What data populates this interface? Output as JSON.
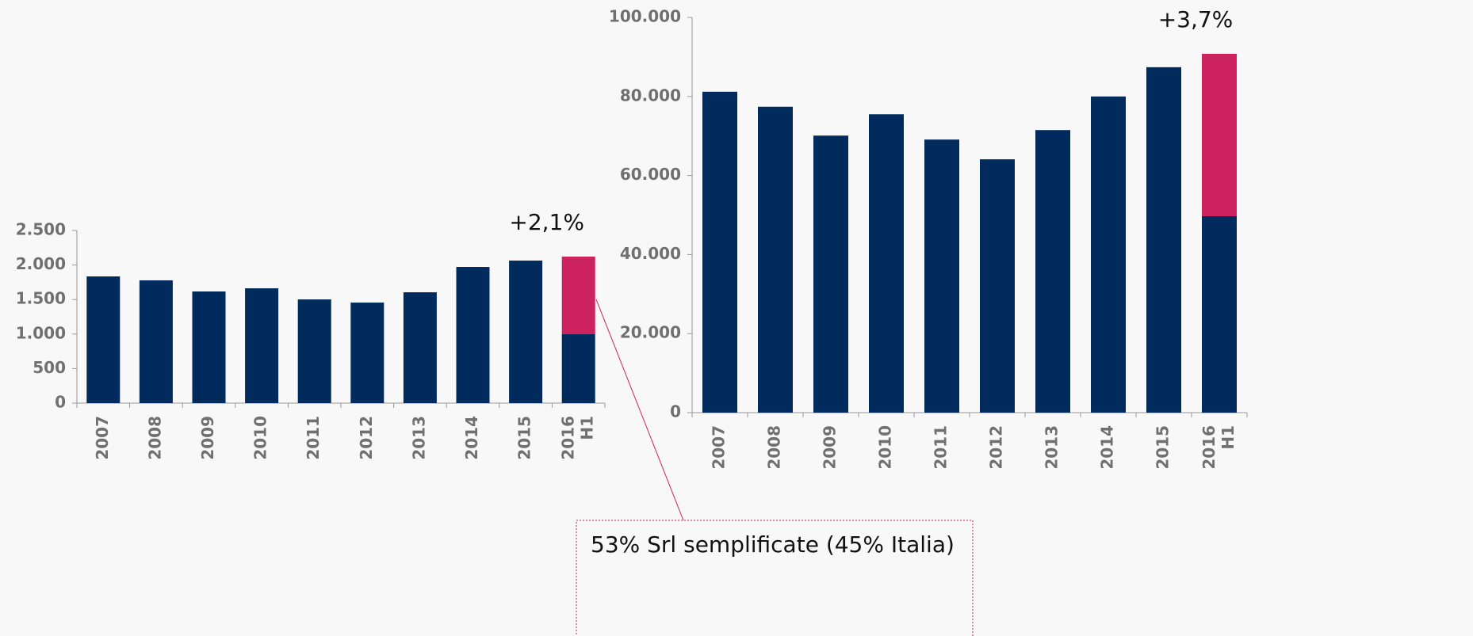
{
  "chart_data": [
    {
      "type": "bar",
      "stacked": true,
      "categories": [
        "2007",
        "2008",
        "2009",
        "2010",
        "2011",
        "2012",
        "2013",
        "2014",
        "2015",
        "2016 H1"
      ],
      "series": [
        {
          "color": "#002b5c",
          "values": [
            1835,
            1778,
            1617,
            1663,
            1502,
            1456,
            1605,
            1972,
            2064,
            998
          ]
        },
        {
          "color": "#cc2260",
          "values": [
            null,
            null,
            null,
            null,
            null,
            null,
            null,
            null,
            null,
            1124
          ]
        }
      ],
      "ylim": [
        0,
        2500
      ],
      "yticks": [
        0,
        500,
        {
          "value": 1000,
          "label": "1.000"
        },
        {
          "value": 1500,
          "label": "1.500"
        },
        {
          "value": 2000,
          "label": "2.000"
        },
        {
          "value": 2500,
          "label": "2.500"
        }
      ],
      "annotation": "+2,1%"
    },
    {
      "type": "bar",
      "stacked": true,
      "categories": [
        "2007",
        "2008",
        "2009",
        "2010",
        "2011",
        "2012",
        "2013",
        "2014",
        "2015",
        "2016 H1"
      ],
      "series": [
        {
          "color": "#002b5c",
          "values": [
            81200,
            77400,
            70100,
            75500,
            69100,
            64100,
            71500,
            80000,
            87400,
            49700
          ]
        },
        {
          "color": "#cc2260",
          "values": [
            null,
            null,
            null,
            null,
            null,
            null,
            null,
            null,
            null,
            41100
          ]
        }
      ],
      "ylim": [
        0,
        100000
      ],
      "yticks": [
        0,
        {
          "value": 20000,
          "label": "20.000"
        },
        {
          "value": 40000,
          "label": "40.000"
        },
        {
          "value": 60000,
          "label": "60.000"
        },
        {
          "value": 80000,
          "label": "80.000"
        },
        {
          "value": 100000,
          "label": "100.000"
        }
      ],
      "annotation": "+3,7%"
    }
  ],
  "callout": "53% Srl semplificate (45% Italia)"
}
